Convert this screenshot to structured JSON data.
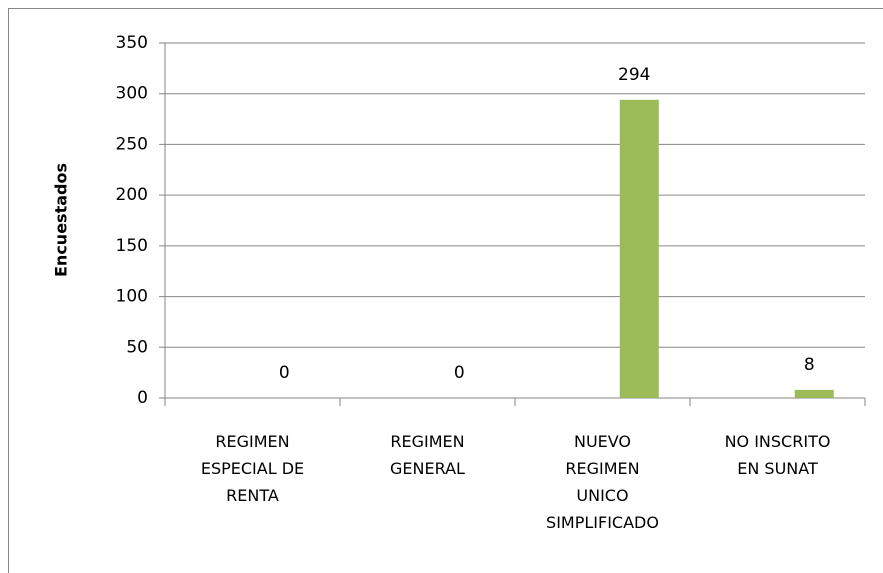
{
  "chart_data": {
    "type": "bar",
    "y_label": "Encuestados",
    "categories": [
      "REGIMEN\nESPECIAL DE\nRENTA",
      "REGIMEN\nGENERAL",
      "NUEVO\nREGIMEN\nUNICO\nSIMPLIFICADO",
      "NO INSCRITO\nEN SUNAT"
    ],
    "values": [
      0,
      0,
      294,
      8
    ],
    "color": "#9bbb59",
    "ylim": [
      0,
      350
    ],
    "yticks": [
      0,
      50,
      100,
      150,
      200,
      250,
      300,
      350
    ],
    "grid": true
  }
}
